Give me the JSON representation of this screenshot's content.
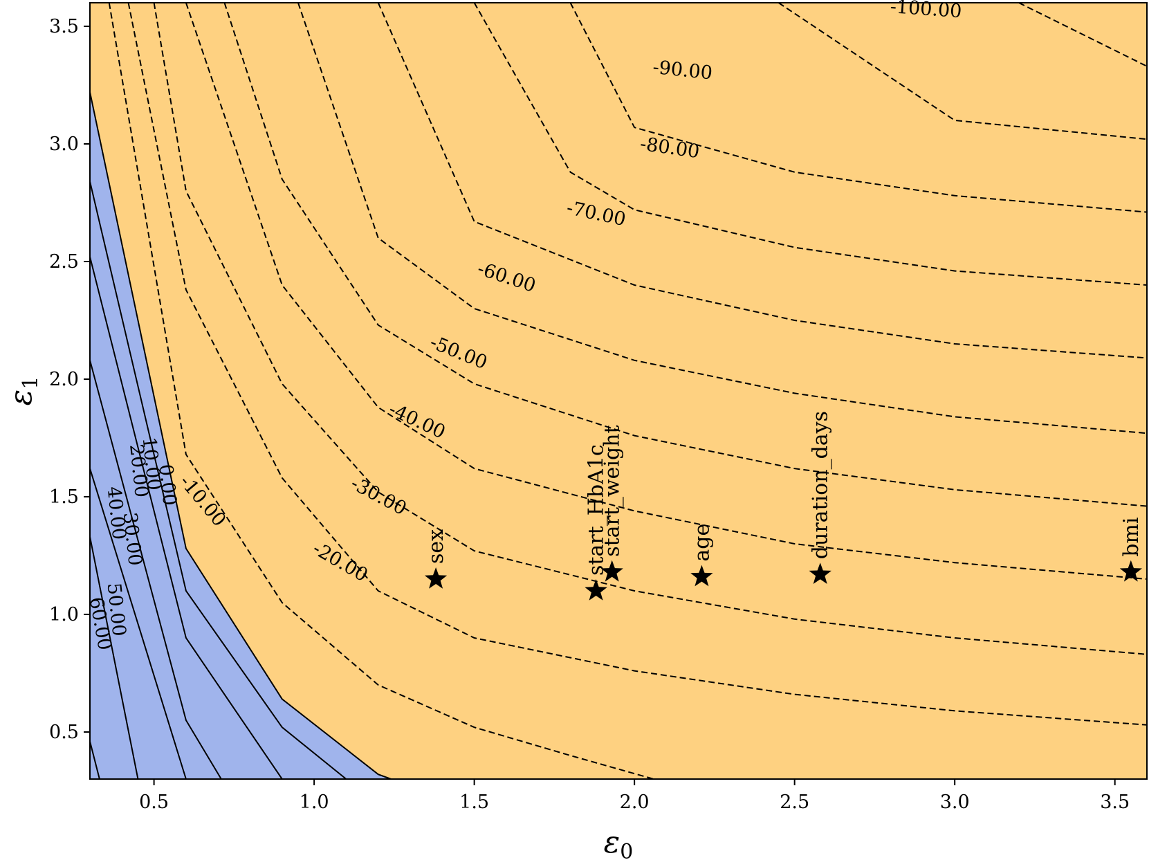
{
  "chart_data": {
    "type": "contour",
    "title": "",
    "xlabel": "ε",
    "xlabel_sub": "0",
    "ylabel": "ε",
    "ylabel_sub": "1",
    "xlim": [
      0.3,
      3.6
    ],
    "ylim": [
      0.3,
      3.6
    ],
    "x_ticks": [
      0.5,
      1.0,
      1.5,
      2.0,
      2.5,
      3.0,
      3.5
    ],
    "x_tick_labels": [
      "0.5",
      "1.0",
      "1.5",
      "2.0",
      "2.5",
      "3.0",
      "3.5"
    ],
    "y_ticks": [
      0.5,
      1.0,
      1.5,
      2.0,
      2.5,
      3.0,
      3.5
    ],
    "y_tick_labels": [
      "0.5",
      "1.0",
      "1.5",
      "2.0",
      "2.5",
      "3.0",
      "3.5"
    ],
    "grid": false,
    "colors": {
      "positive_region": "#a0b4ec",
      "negative_region": "#fed181",
      "contour_line": "#000000"
    },
    "positive_region_boundary": [
      [
        0.3,
        3.22
      ],
      [
        0.6,
        1.28
      ],
      [
        0.9,
        0.64
      ],
      [
        1.2,
        0.32
      ],
      [
        1.24,
        0.3
      ]
    ],
    "contours": [
      {
        "level": 60.0,
        "label": "60.00",
        "style": "solid",
        "points": [
          [
            0.3,
            0.46
          ],
          [
            0.33,
            0.3
          ]
        ]
      },
      {
        "level": 50.0,
        "label": "50.00",
        "style": "solid",
        "points": [
          [
            0.3,
            1.33
          ],
          [
            0.45,
            0.3
          ]
        ]
      },
      {
        "level": 40.0,
        "label": "40.00",
        "style": "solid",
        "points": [
          [
            0.3,
            1.62
          ],
          [
            0.6,
            0.3
          ]
        ]
      },
      {
        "level": 30.0,
        "label": "30.00",
        "style": "solid",
        "points": [
          [
            0.3,
            2.08
          ],
          [
            0.6,
            0.55
          ],
          [
            0.71,
            0.3
          ]
        ]
      },
      {
        "level": 20.0,
        "label": "20.00",
        "style": "solid",
        "points": [
          [
            0.3,
            2.52
          ],
          [
            0.6,
            0.9
          ],
          [
            0.9,
            0.3
          ]
        ]
      },
      {
        "level": 10.0,
        "label": "10.00",
        "style": "solid",
        "points": [
          [
            0.3,
            2.84
          ],
          [
            0.6,
            1.1
          ],
          [
            0.9,
            0.52
          ],
          [
            1.1,
            0.3
          ]
        ]
      },
      {
        "level": 0.0,
        "label": "0.00",
        "style": "solid",
        "points": [
          [
            0.3,
            3.22
          ],
          [
            0.6,
            1.28
          ],
          [
            0.9,
            0.64
          ],
          [
            1.2,
            0.32
          ],
          [
            1.24,
            0.3
          ]
        ]
      },
      {
        "level": -10.0,
        "label": "-10.00",
        "style": "dashed",
        "points": [
          [
            0.36,
            3.6
          ],
          [
            0.6,
            1.68
          ],
          [
            0.9,
            1.05
          ],
          [
            1.2,
            0.7
          ],
          [
            1.5,
            0.52
          ],
          [
            1.8,
            0.4
          ],
          [
            2.06,
            0.3
          ]
        ]
      },
      {
        "level": -20.0,
        "label": "-20.00",
        "style": "dashed",
        "points": [
          [
            0.42,
            3.6
          ],
          [
            0.6,
            2.38
          ],
          [
            0.9,
            1.58
          ],
          [
            1.2,
            1.1
          ],
          [
            1.5,
            0.9
          ],
          [
            2.0,
            0.76
          ],
          [
            2.5,
            0.66
          ],
          [
            3.0,
            0.59
          ],
          [
            3.6,
            0.53
          ]
        ]
      },
      {
        "level": -30.0,
        "label": "-30.00",
        "style": "dashed",
        "points": [
          [
            0.5,
            3.6
          ],
          [
            0.6,
            2.8
          ],
          [
            0.9,
            1.98
          ],
          [
            1.2,
            1.52
          ],
          [
            1.5,
            1.27
          ],
          [
            2.0,
            1.1
          ],
          [
            2.5,
            0.98
          ],
          [
            3.0,
            0.9
          ],
          [
            3.6,
            0.83
          ]
        ]
      },
      {
        "level": -40.0,
        "label": "-40.00",
        "style": "dashed",
        "points": [
          [
            0.6,
            3.6
          ],
          [
            0.9,
            2.4
          ],
          [
            1.2,
            1.88
          ],
          [
            1.5,
            1.62
          ],
          [
            2.0,
            1.44
          ],
          [
            2.5,
            1.3
          ],
          [
            3.0,
            1.22
          ],
          [
            3.6,
            1.15
          ]
        ]
      },
      {
        "level": -50.0,
        "label": "-50.00",
        "style": "dashed",
        "points": [
          [
            0.72,
            3.6
          ],
          [
            0.9,
            2.85
          ],
          [
            1.2,
            2.23
          ],
          [
            1.5,
            1.98
          ],
          [
            2.0,
            1.76
          ],
          [
            2.5,
            1.62
          ],
          [
            3.0,
            1.53
          ],
          [
            3.6,
            1.46
          ]
        ]
      },
      {
        "level": -60.0,
        "label": "-60.00",
        "style": "dashed",
        "points": [
          [
            0.95,
            3.6
          ],
          [
            1.2,
            2.6
          ],
          [
            1.5,
            2.3
          ],
          [
            2.0,
            2.08
          ],
          [
            2.5,
            1.94
          ],
          [
            3.0,
            1.84
          ],
          [
            3.6,
            1.77
          ]
        ]
      },
      {
        "level": -70.0,
        "label": "-70.00",
        "style": "dashed",
        "points": [
          [
            1.2,
            3.6
          ],
          [
            1.5,
            2.67
          ],
          [
            2.0,
            2.4
          ],
          [
            2.5,
            2.25
          ],
          [
            3.0,
            2.15
          ],
          [
            3.6,
            2.09
          ]
        ]
      },
      {
        "level": -80.0,
        "label": "-80.00",
        "style": "dashed",
        "points": [
          [
            1.5,
            3.6
          ],
          [
            1.8,
            2.88
          ],
          [
            2.0,
            2.72
          ],
          [
            2.5,
            2.56
          ],
          [
            3.0,
            2.46
          ],
          [
            3.6,
            2.4
          ]
        ]
      },
      {
        "level": -90.0,
        "label": "-90.00",
        "style": "dashed",
        "points": [
          [
            1.8,
            3.6
          ],
          [
            2.0,
            3.07
          ],
          [
            2.5,
            2.88
          ],
          [
            3.0,
            2.78
          ],
          [
            3.6,
            2.71
          ]
        ]
      },
      {
        "level": -100.0,
        "label": "-100.00",
        "style": "dashed",
        "points": [
          [
            2.45,
            3.6
          ],
          [
            3.0,
            3.1
          ],
          [
            3.6,
            3.02
          ]
        ]
      },
      {
        "level": -110.0,
        "label": "",
        "style": "dashed",
        "points": [
          [
            3.2,
            3.6
          ],
          [
            3.6,
            3.33
          ]
        ]
      }
    ],
    "markers": [
      {
        "label": "sex",
        "x": 1.38,
        "y": 1.15
      },
      {
        "label": "start_HbA1c",
        "x": 1.88,
        "y": 1.1
      },
      {
        "label": "start_weight",
        "x": 1.93,
        "y": 1.18
      },
      {
        "label": "age",
        "x": 2.21,
        "y": 1.16
      },
      {
        "label": "duration_days",
        "x": 2.58,
        "y": 1.17
      },
      {
        "label": "bmi",
        "x": 3.55,
        "y": 1.18
      }
    ]
  }
}
